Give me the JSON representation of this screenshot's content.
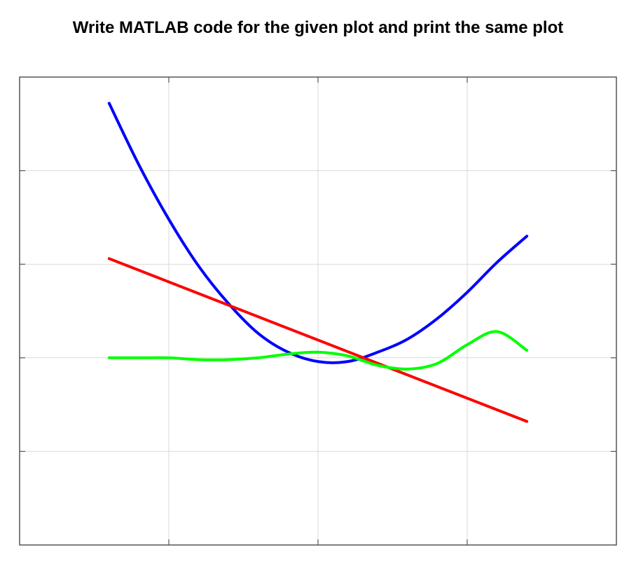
{
  "question": "Write MATLAB code for the given plot and print the same plot",
  "colors": {
    "background": "#ffffff",
    "axes_box": "#555555",
    "grid": "#d9d9d9"
  },
  "chart_data": {
    "type": "line",
    "title": "",
    "xlabel": "",
    "ylabel": "",
    "xlim": [
      -2,
      2
    ],
    "ylim": [
      -1,
      1.5
    ],
    "xticks": [
      -1,
      0,
      1
    ],
    "yticks": [
      -0.5,
      0,
      0.5,
      1
    ],
    "grid": true,
    "legend": false,
    "series": [
      {
        "color": "#0000ff",
        "x": [
          -1.4,
          -1.2,
          -1.0,
          -0.8,
          -0.6,
          -0.4,
          -0.2,
          0.0,
          0.2,
          0.4,
          0.6,
          0.8,
          1.0,
          1.2,
          1.4
        ],
        "y": [
          1.36,
          1.03,
          0.74,
          0.49,
          0.29,
          0.13,
          0.03,
          -0.02,
          -0.02,
          0.03,
          0.1,
          0.21,
          0.35,
          0.51,
          0.65
        ]
      },
      {
        "color": "#ff0000",
        "x": [
          -1.4,
          1.4
        ],
        "y": [
          0.53,
          -0.34
        ]
      },
      {
        "color": "#00ff00",
        "x": [
          -1.4,
          -1.2,
          -1.0,
          -0.8,
          -0.6,
          -0.4,
          -0.2,
          0.0,
          0.2,
          0.4,
          0.6,
          0.8,
          1.0,
          1.2,
          1.4
        ],
        "y": [
          0.0,
          0.0,
          0.0,
          -0.01,
          -0.01,
          0.0,
          0.02,
          0.03,
          0.01,
          -0.04,
          -0.06,
          -0.03,
          0.07,
          0.14,
          0.04
        ]
      }
    ]
  }
}
